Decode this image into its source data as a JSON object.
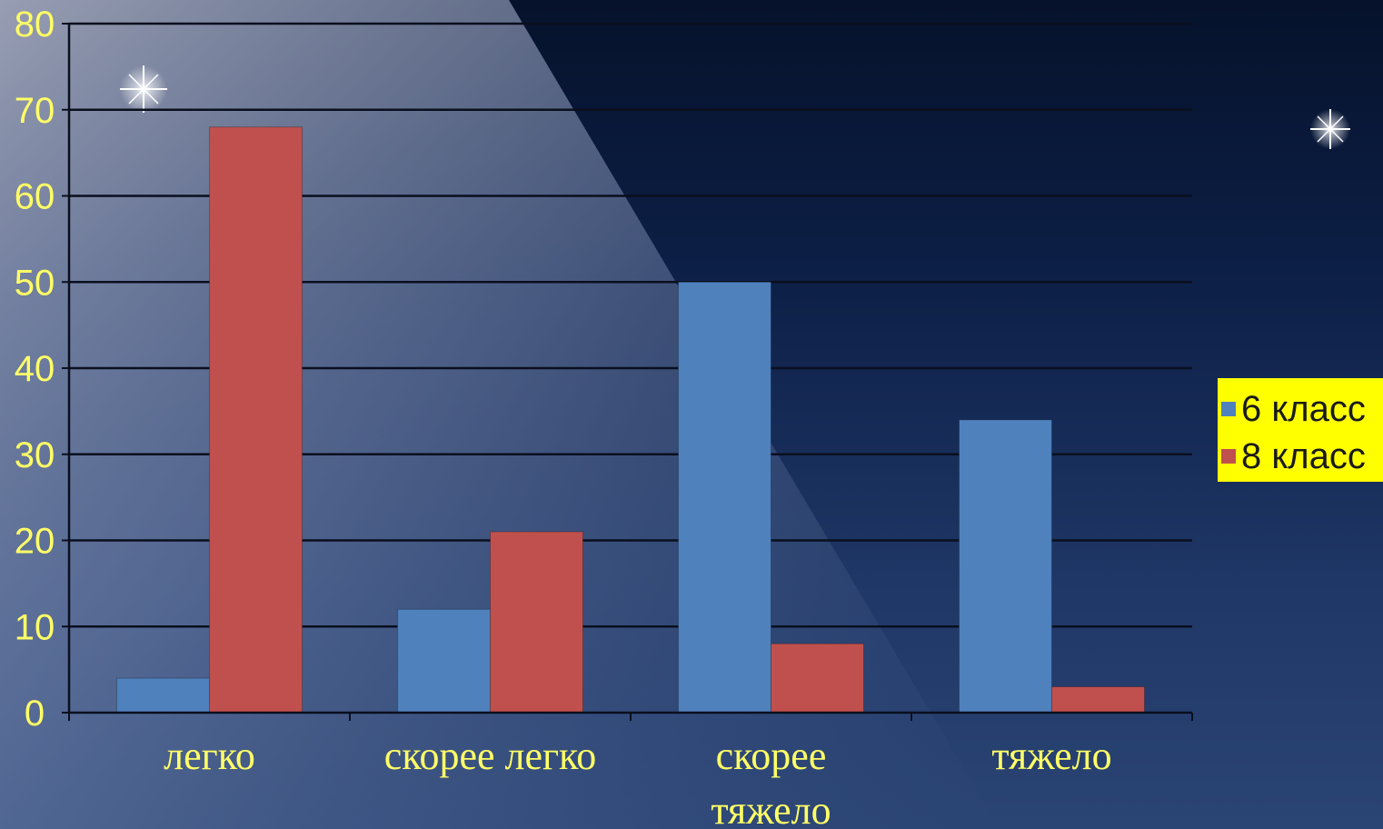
{
  "colors": {
    "series_6": "#4f81bd",
    "series_8": "#c0504d",
    "text": "#ffff66",
    "legend_bg": "#ffff00"
  },
  "chart_data": {
    "type": "bar",
    "title": "",
    "xlabel": "",
    "ylabel": "",
    "categories": [
      [
        "легко"
      ],
      [
        "скорее легко"
      ],
      [
        "скорее",
        "тяжело"
      ],
      [
        "тяжело"
      ]
    ],
    "series": [
      {
        "name": "6 класс",
        "values": [
          4,
          12,
          50,
          34
        ]
      },
      {
        "name": "8 класс",
        "values": [
          68,
          21,
          8,
          3
        ]
      }
    ],
    "ylim": [
      0,
      80
    ],
    "yticks": [
      0,
      10,
      20,
      30,
      40,
      50,
      60,
      70,
      80
    ],
    "grid": true,
    "legend_position": "right"
  }
}
